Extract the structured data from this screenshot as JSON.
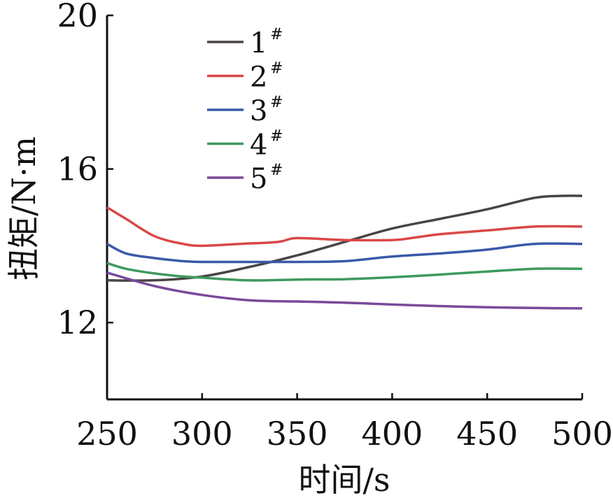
{
  "chart_data": {
    "type": "line",
    "xlabel": "时间/s",
    "ylabel": "扭矩/N·m",
    "xlim": [
      250,
      500
    ],
    "ylim": [
      10,
      20
    ],
    "xticks": [
      250,
      300,
      350,
      400,
      450,
      500
    ],
    "yticks": [
      12,
      16,
      20
    ],
    "legend_position": "top-left",
    "legend_marker_superscript": "#",
    "series": [
      {
        "name": "1",
        "color": "#4a4444",
        "x": [
          250,
          275,
          300,
          325,
          350,
          375,
          400,
          425,
          450,
          475,
          490,
          500
        ],
        "y": [
          13.1,
          13.1,
          13.2,
          13.45,
          13.75,
          14.1,
          14.45,
          14.7,
          14.95,
          15.25,
          15.3,
          15.3
        ]
      },
      {
        "name": "2",
        "color": "#d94848",
        "x": [
          250,
          260,
          275,
          290,
          300,
          320,
          340,
          350,
          375,
          400,
          410,
          425,
          450,
          475,
          500
        ],
        "y": [
          15.0,
          14.7,
          14.25,
          14.05,
          14.0,
          14.05,
          14.1,
          14.2,
          14.15,
          14.15,
          14.2,
          14.3,
          14.4,
          14.5,
          14.5
        ]
      },
      {
        "name": "3",
        "color": "#3a5aa8",
        "x": [
          250,
          260,
          275,
          290,
          300,
          325,
          350,
          375,
          400,
          425,
          450,
          475,
          500
        ],
        "y": [
          14.05,
          13.8,
          13.68,
          13.6,
          13.58,
          13.58,
          13.58,
          13.6,
          13.72,
          13.8,
          13.9,
          14.05,
          14.05
        ]
      },
      {
        "name": "4",
        "color": "#3e9a5e",
        "x": [
          250,
          260,
          275,
          290,
          300,
          325,
          350,
          375,
          400,
          425,
          450,
          475,
          500
        ],
        "y": [
          13.55,
          13.4,
          13.28,
          13.2,
          13.17,
          13.1,
          13.12,
          13.13,
          13.18,
          13.25,
          13.33,
          13.4,
          13.4
        ]
      },
      {
        "name": "5",
        "color": "#7a4a9a",
        "x": [
          250,
          275,
          300,
          325,
          350,
          375,
          400,
          425,
          450,
          475,
          500
        ],
        "y": [
          13.3,
          12.95,
          12.72,
          12.58,
          12.55,
          12.52,
          12.47,
          12.43,
          12.4,
          12.38,
          12.37
        ]
      }
    ]
  }
}
